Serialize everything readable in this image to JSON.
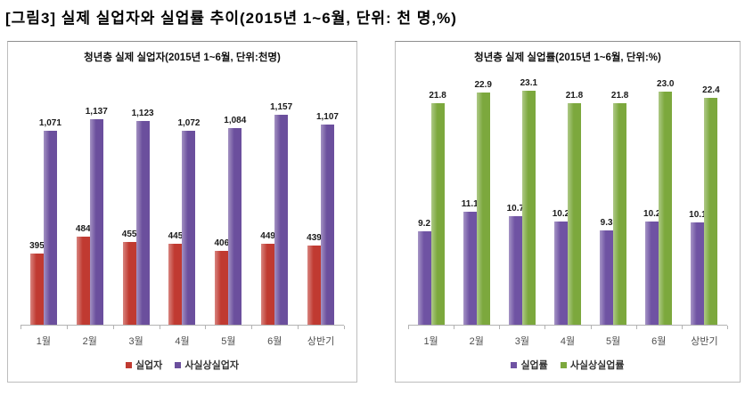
{
  "page_title": "[그림3] 실제 실업자와 실업률 추이(2015년 1~6월, 단위: 천 명,%)",
  "chart_data": [
    {
      "type": "bar",
      "title": "청년층 실제 실업자(2015년 1~6월, 단위:천명)",
      "categories": [
        "1월",
        "2월",
        "3월",
        "4월",
        "5월",
        "6월",
        "상반기"
      ],
      "series": [
        {
          "name": "실업자",
          "color": "#c03a31",
          "values": [
            395,
            484,
            455,
            445,
            406,
            449,
            439
          ],
          "labels": [
            "395",
            "484",
            "455",
            "445",
            "406",
            "449",
            "439"
          ]
        },
        {
          "name": "사실상실업자",
          "color": "#6b4f9d",
          "values": [
            1071,
            1137,
            1123,
            1072,
            1084,
            1157,
            1107
          ],
          "labels": [
            "1,071",
            "1,137",
            "1,123",
            "1,072",
            "1,084",
            "1,157",
            "1,107"
          ]
        }
      ],
      "ylim": [
        0,
        1400
      ],
      "grid": false,
      "legend_position": "bottom"
    },
    {
      "type": "bar",
      "title": "청년층 실제 실업률(2015년 1~6월, 단위:%)",
      "categories": [
        "1월",
        "2월",
        "3월",
        "4월",
        "5월",
        "6월",
        "상반기"
      ],
      "series": [
        {
          "name": "실업률",
          "color": "#6f53a3",
          "values": [
            9.2,
            11.1,
            10.7,
            10.2,
            9.3,
            10.2,
            10.1
          ],
          "labels": [
            "9.2",
            "11.1",
            "10.7",
            "10.2",
            "9.3",
            "10.2",
            "10.1"
          ]
        },
        {
          "name": "사실상실업률",
          "color": "#7ca83d",
          "values": [
            21.8,
            22.9,
            23.1,
            21.8,
            21.8,
            23.0,
            22.4
          ],
          "labels": [
            "21.8",
            "22.9",
            "23.1",
            "21.8",
            "21.8",
            "23.0",
            "22.4"
          ]
        }
      ],
      "ylim": [
        0,
        25
      ],
      "grid": false,
      "legend_position": "bottom"
    }
  ]
}
